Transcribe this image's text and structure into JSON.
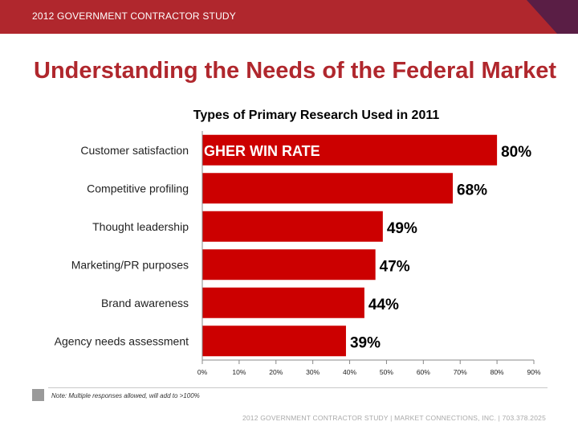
{
  "header": {
    "title": "2012 GOVERNMENT CONTRACTOR STUDY",
    "bar_color": "#b0272d",
    "corner_color": "#5a1e45"
  },
  "page": {
    "title": "Understanding the Needs of the Federal Market"
  },
  "chart_data": {
    "type": "bar",
    "orientation": "horizontal",
    "title": "Types of Primary Research Used in 2011",
    "categories": [
      "Customer satisfaction",
      "Competitive profiling",
      "Thought leadership",
      "Marketing/PR purposes",
      "Brand awareness",
      "Agency needs assessment"
    ],
    "values": [
      80,
      68,
      49,
      47,
      44,
      39
    ],
    "value_labels": [
      "80%",
      "68%",
      "49%",
      "47%",
      "44%",
      "39%"
    ],
    "xlim": [
      0,
      90
    ],
    "xticks": [
      "0%",
      "10%",
      "20%",
      "30%",
      "40%",
      "50%",
      "60%",
      "70%",
      "80%",
      "90%"
    ],
    "bar_color": "#cc0000",
    "grid": false,
    "overlay_text": "GHER WIN RATE"
  },
  "note": "Note: Multiple responses allowed, will add to >100%",
  "footer": "2012 GOVERNMENT CONTRACTOR STUDY   |   MARKET CONNECTIONS, INC.  |  703.378.2025"
}
